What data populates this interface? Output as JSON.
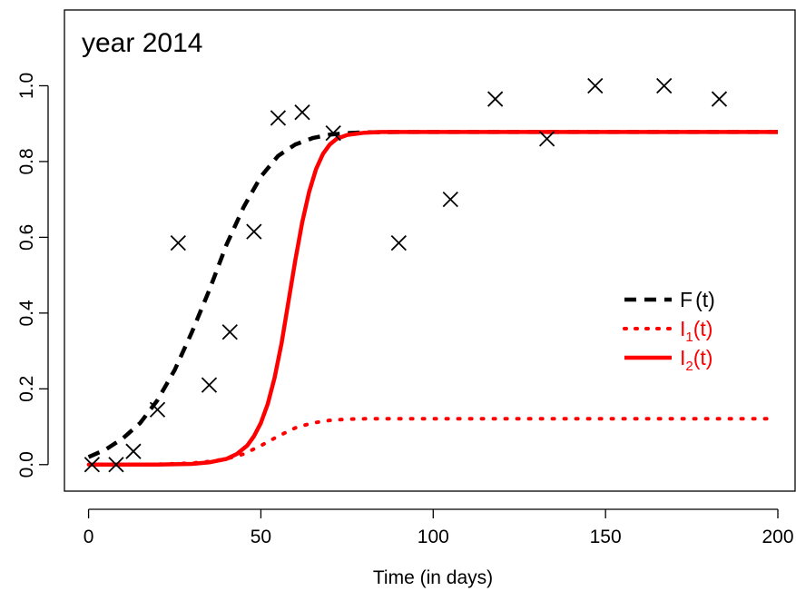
{
  "chart_data": {
    "type": "line",
    "title": "year  2014",
    "xlabel": "Time (in days)",
    "ylabel": "",
    "xlim": [
      -7,
      205
    ],
    "ylim": [
      -0.07,
      1.2
    ],
    "x_ticks": [
      0,
      50,
      100,
      150,
      200
    ],
    "x_tick_labels": [
      "0",
      "50",
      "100",
      "150",
      "200"
    ],
    "y_ticks": [
      0.0,
      0.2,
      0.4,
      0.6,
      0.8,
      1.0
    ],
    "y_tick_labels": [
      "0.0",
      "0.2",
      "0.4",
      "0.6",
      "0.8",
      "1.0"
    ],
    "grid": false,
    "legend_position": "right",
    "legend": [
      {
        "label": "F(t)",
        "base": "F",
        "sub": "",
        "arg": "(t)",
        "color": "#000000",
        "style": "dashed"
      },
      {
        "label": "I1(t)",
        "base": "I",
        "sub": "1",
        "arg": "(t)",
        "color": "#ff0000",
        "style": "dotted"
      },
      {
        "label": "I2(t)",
        "base": "I",
        "sub": "2",
        "arg": "(t)",
        "color": "#ff0000",
        "style": "solid"
      }
    ],
    "series": [
      {
        "name": "F(t)",
        "color": "#000000",
        "style": "dashed",
        "x": [
          0,
          5,
          10,
          15,
          20,
          25,
          30,
          35,
          40,
          45,
          50,
          55,
          60,
          65,
          70,
          75,
          80,
          90,
          100,
          120,
          150,
          180,
          200
        ],
        "y": [
          0.02,
          0.04,
          0.07,
          0.11,
          0.17,
          0.25,
          0.35,
          0.46,
          0.58,
          0.68,
          0.76,
          0.815,
          0.845,
          0.862,
          0.871,
          0.875,
          0.877,
          0.878,
          0.878,
          0.878,
          0.878,
          0.878,
          0.878
        ]
      },
      {
        "name": "I1(t)",
        "color": "#ff0000",
        "style": "dotted",
        "x": [
          0,
          10,
          20,
          30,
          35,
          40,
          45,
          50,
          55,
          60,
          65,
          70,
          75,
          80,
          90,
          100,
          120,
          150,
          180,
          197
        ],
        "y": [
          0,
          0,
          0.001,
          0.004,
          0.008,
          0.015,
          0.028,
          0.05,
          0.075,
          0.097,
          0.11,
          0.117,
          0.12,
          0.121,
          0.121,
          0.121,
          0.121,
          0.121,
          0.121,
          0.121
        ]
      },
      {
        "name": "I2(t)",
        "color": "#ff0000",
        "style": "solid",
        "x": [
          0,
          10,
          20,
          30,
          35,
          40,
          43,
          46,
          48,
          50,
          52,
          54,
          56,
          58,
          60,
          62,
          64,
          66,
          68,
          70,
          72,
          75,
          80,
          85,
          90,
          100,
          120,
          150,
          180,
          200
        ],
        "y": [
          0,
          0,
          0,
          0.002,
          0.006,
          0.015,
          0.028,
          0.05,
          0.075,
          0.11,
          0.16,
          0.23,
          0.32,
          0.43,
          0.54,
          0.64,
          0.72,
          0.78,
          0.82,
          0.845,
          0.86,
          0.87,
          0.876,
          0.878,
          0.878,
          0.878,
          0.878,
          0.878,
          0.878,
          0.878
        ]
      },
      {
        "name": "",
        "color": "#000000",
        "style": "points-x",
        "x": [
          1,
          8,
          13,
          20,
          26,
          35,
          41,
          48,
          55,
          62,
          71,
          90,
          105,
          118,
          133,
          147,
          167,
          183
        ],
        "y": [
          0.0,
          0.0,
          0.035,
          0.145,
          0.585,
          0.21,
          0.35,
          0.615,
          0.915,
          0.93,
          0.875,
          0.585,
          0.7,
          0.965,
          0.86,
          1.0,
          1.0,
          0.965
        ]
      }
    ]
  }
}
